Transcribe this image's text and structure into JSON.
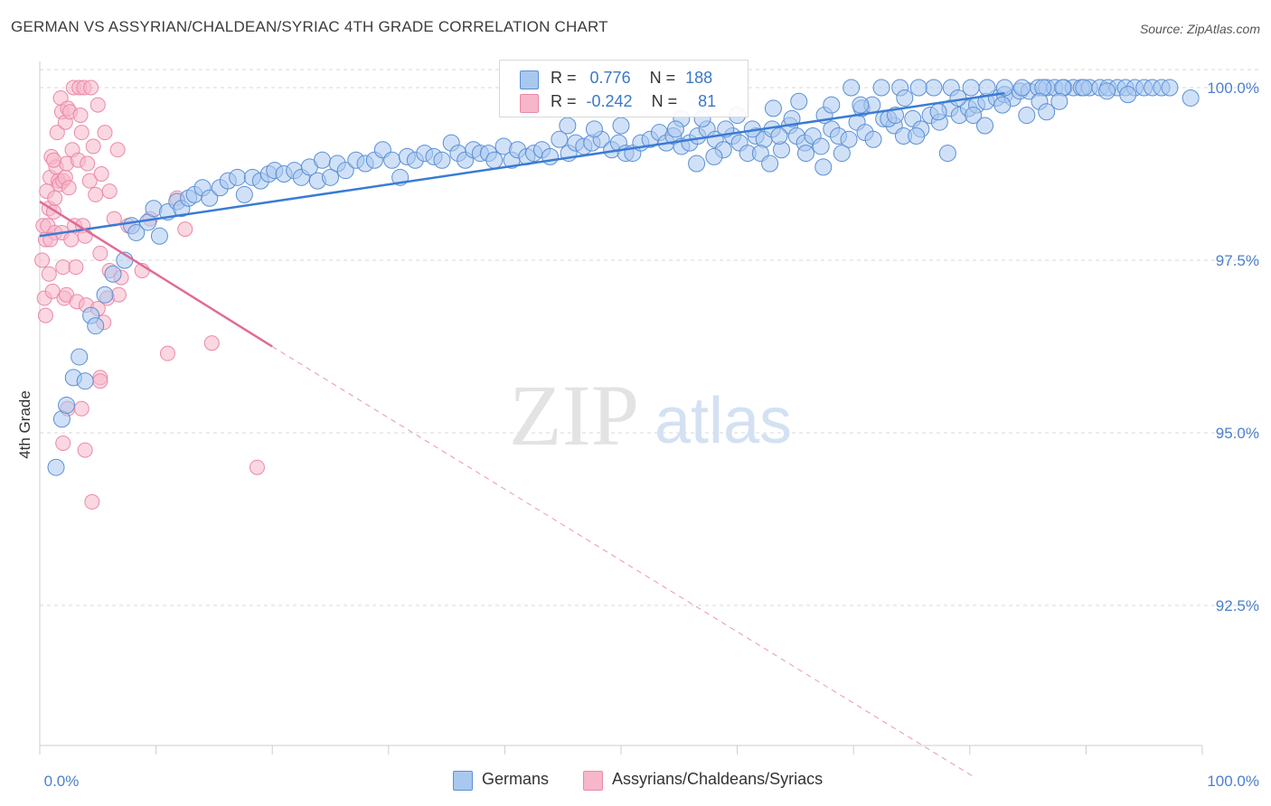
{
  "title": "GERMAN VS ASSYRIAN/CHALDEAN/SYRIAC 4TH GRADE CORRELATION CHART",
  "source": "Source: ZipAtlas.com",
  "watermark": {
    "zip": "ZIP",
    "atlas": "atlas"
  },
  "legend": {
    "r_label": "R =",
    "n_label": "N =",
    "germans": {
      "r": "0.776",
      "n": "188"
    },
    "assyrians": {
      "r": "-0.242",
      "n": "81"
    }
  },
  "colors": {
    "blue_fill": "#a9c8f0",
    "blue_stroke": "#5b8fd6",
    "blue_line": "#3a7bd5",
    "pink_fill": "#f7b6c9",
    "pink_stroke": "#e98aa8",
    "pink_line": "#e06a96",
    "tick_label": "#4a7fd0",
    "grid": "#d9d9d9"
  },
  "chart_data": {
    "type": "scatter",
    "title": "GERMAN VS ASSYRIAN/CHALDEAN/SYRIAC 4TH GRADE CORRELATION CHART",
    "ylabel": "4th Grade",
    "xlabel": "",
    "xlim": [
      0,
      100
    ],
    "ylim": [
      90.0,
      100.4
    ],
    "x_tick_labels": [
      "0.0%",
      "100.0%"
    ],
    "y_ticks": [
      92.5,
      95.0,
      97.5,
      100.0
    ],
    "y_tick_labels": [
      "92.5%",
      "95.0%",
      "97.5%",
      "100.0%"
    ],
    "grid": true,
    "legend_position": "bottom",
    "series": [
      {
        "name": "Germans",
        "r": 0.776,
        "n": 188,
        "trend": {
          "x0": 0,
          "y0": 97.85,
          "x1": 83,
          "y1": 99.92
        },
        "points": [
          [
            1.4,
            94.5
          ],
          [
            1.9,
            95.2
          ],
          [
            2.3,
            95.4
          ],
          [
            2.9,
            95.8
          ],
          [
            3.4,
            96.1
          ],
          [
            3.9,
            95.75
          ],
          [
            4.4,
            96.7
          ],
          [
            4.8,
            96.55
          ],
          [
            5.6,
            97.0
          ],
          [
            6.3,
            97.3
          ],
          [
            7.3,
            97.5
          ],
          [
            7.9,
            98.0
          ],
          [
            8.3,
            97.9
          ],
          [
            9.3,
            98.05
          ],
          [
            9.8,
            98.25
          ],
          [
            10.3,
            97.85
          ],
          [
            11.0,
            98.2
          ],
          [
            11.8,
            98.35
          ],
          [
            12.2,
            98.25
          ],
          [
            12.8,
            98.4
          ],
          [
            13.3,
            98.45
          ],
          [
            14.0,
            98.55
          ],
          [
            14.6,
            98.4
          ],
          [
            15.5,
            98.55
          ],
          [
            16.2,
            98.65
          ],
          [
            17.0,
            98.7
          ],
          [
            17.6,
            98.45
          ],
          [
            18.3,
            98.7
          ],
          [
            19.0,
            98.65
          ],
          [
            19.7,
            98.75
          ],
          [
            20.2,
            98.8
          ],
          [
            21.0,
            98.75
          ],
          [
            21.9,
            98.8
          ],
          [
            22.5,
            98.7
          ],
          [
            23.2,
            98.85
          ],
          [
            23.9,
            98.65
          ],
          [
            24.3,
            98.95
          ],
          [
            25.0,
            98.7
          ],
          [
            25.6,
            98.9
          ],
          [
            26.3,
            98.8
          ],
          [
            27.2,
            98.95
          ],
          [
            28.0,
            98.9
          ],
          [
            28.8,
            98.95
          ],
          [
            29.5,
            99.1
          ],
          [
            30.3,
            98.95
          ],
          [
            31.0,
            98.7
          ],
          [
            31.6,
            99.0
          ],
          [
            32.3,
            98.95
          ],
          [
            33.1,
            99.05
          ],
          [
            33.9,
            99.0
          ],
          [
            34.6,
            98.95
          ],
          [
            35.4,
            99.2
          ],
          [
            36.0,
            99.05
          ],
          [
            36.6,
            98.95
          ],
          [
            37.3,
            99.1
          ],
          [
            37.9,
            99.05
          ],
          [
            38.6,
            99.05
          ],
          [
            39.1,
            98.95
          ],
          [
            39.9,
            99.15
          ],
          [
            40.6,
            98.95
          ],
          [
            41.1,
            99.1
          ],
          [
            41.9,
            99.0
          ],
          [
            42.5,
            99.05
          ],
          [
            43.2,
            99.1
          ],
          [
            43.9,
            99.0
          ],
          [
            44.7,
            99.25
          ],
          [
            45.5,
            99.05
          ],
          [
            46.1,
            99.2
          ],
          [
            46.8,
            99.15
          ],
          [
            47.5,
            99.2
          ],
          [
            48.3,
            99.25
          ],
          [
            49.2,
            99.1
          ],
          [
            49.8,
            99.2
          ],
          [
            50.4,
            99.05
          ],
          [
            51.0,
            99.05
          ],
          [
            51.7,
            99.2
          ],
          [
            52.5,
            99.25
          ],
          [
            53.3,
            99.35
          ],
          [
            53.9,
            99.2
          ],
          [
            54.5,
            99.3
          ],
          [
            55.2,
            99.15
          ],
          [
            55.9,
            99.2
          ],
          [
            56.6,
            99.3
          ],
          [
            57.4,
            99.4
          ],
          [
            58.1,
            99.25
          ],
          [
            58.8,
            99.1
          ],
          [
            59.6,
            99.3
          ],
          [
            60.2,
            99.2
          ],
          [
            60.9,
            99.05
          ],
          [
            61.6,
            99.3
          ],
          [
            62.3,
            99.25
          ],
          [
            63.0,
            99.4
          ],
          [
            63.8,
            99.1
          ],
          [
            64.5,
            99.45
          ],
          [
            65.1,
            99.3
          ],
          [
            65.8,
            99.2
          ],
          [
            66.5,
            99.3
          ],
          [
            67.2,
            99.15
          ],
          [
            68.1,
            99.4
          ],
          [
            68.7,
            99.3
          ],
          [
            69.6,
            99.25
          ],
          [
            70.3,
            99.5
          ],
          [
            71.0,
            99.35
          ],
          [
            71.7,
            99.25
          ],
          [
            72.6,
            99.55
          ],
          [
            73.5,
            99.45
          ],
          [
            74.3,
            99.3
          ],
          [
            75.1,
            99.55
          ],
          [
            75.8,
            99.4
          ],
          [
            76.6,
            99.6
          ],
          [
            77.4,
            99.5
          ],
          [
            78.3,
            99.7
          ],
          [
            79.1,
            99.6
          ],
          [
            79.9,
            99.7
          ],
          [
            80.6,
            99.75
          ],
          [
            81.4,
            99.8
          ],
          [
            82.3,
            99.85
          ],
          [
            83.0,
            99.9
          ],
          [
            83.7,
            99.85
          ],
          [
            84.3,
            99.95
          ],
          [
            85.1,
            99.95
          ],
          [
            85.9,
            100.0
          ],
          [
            86.6,
            100.0
          ],
          [
            87.3,
            100.0
          ],
          [
            88.1,
            100.0
          ],
          [
            88.9,
            100.0
          ],
          [
            89.6,
            100.0
          ],
          [
            90.3,
            100.0
          ],
          [
            91.2,
            100.0
          ],
          [
            91.9,
            100.0
          ],
          [
            92.7,
            100.0
          ],
          [
            93.4,
            100.0
          ],
          [
            94.2,
            100.0
          ],
          [
            95.0,
            100.0
          ],
          [
            95.7,
            100.0
          ],
          [
            96.5,
            100.0
          ],
          [
            97.2,
            100.0
          ],
          [
            80.1,
            100.0
          ],
          [
            81.5,
            100.0
          ],
          [
            83.0,
            100.0
          ],
          [
            84.5,
            100.0
          ],
          [
            86.3,
            100.0
          ],
          [
            88.0,
            100.0
          ],
          [
            89.8,
            100.0
          ],
          [
            76.9,
            100.0
          ],
          [
            78.4,
            100.0
          ],
          [
            75.6,
            100.0
          ],
          [
            74.0,
            100.0
          ],
          [
            72.4,
            100.0
          ],
          [
            69.8,
            100.0
          ],
          [
            70.7,
            99.7
          ],
          [
            73.0,
            99.55
          ],
          [
            67.5,
            99.6
          ],
          [
            69.0,
            99.05
          ],
          [
            67.4,
            98.85
          ],
          [
            62.0,
            99.05
          ],
          [
            63.6,
            99.3
          ],
          [
            62.8,
            98.9
          ],
          [
            60.0,
            99.6
          ],
          [
            57.0,
            99.55
          ],
          [
            58.0,
            99.0
          ],
          [
            55.2,
            99.55
          ],
          [
            50.0,
            99.45
          ],
          [
            47.7,
            99.4
          ],
          [
            45.4,
            99.45
          ],
          [
            56.5,
            98.9
          ],
          [
            54.7,
            99.4
          ],
          [
            59.0,
            99.4
          ],
          [
            64.7,
            99.55
          ],
          [
            65.9,
            99.05
          ],
          [
            68.1,
            99.75
          ],
          [
            71.6,
            99.75
          ],
          [
            73.6,
            99.6
          ],
          [
            75.4,
            99.3
          ],
          [
            77.3,
            99.65
          ],
          [
            78.1,
            99.05
          ],
          [
            80.3,
            99.6
          ],
          [
            81.3,
            99.45
          ],
          [
            82.8,
            99.75
          ],
          [
            84.9,
            99.6
          ],
          [
            86.0,
            99.8
          ],
          [
            87.7,
            99.8
          ],
          [
            91.8,
            99.95
          ],
          [
            93.6,
            99.9
          ],
          [
            86.6,
            99.65
          ],
          [
            79.0,
            99.85
          ],
          [
            74.4,
            99.85
          ],
          [
            70.6,
            99.75
          ],
          [
            63.1,
            99.7
          ],
          [
            61.3,
            99.4
          ],
          [
            99.0,
            99.85
          ],
          [
            65.3,
            99.8
          ]
        ]
      },
      {
        "name": "Assyrians/Chaldeans/Syriacs",
        "r": -0.242,
        "n": 81,
        "trend": {
          "x0": 0,
          "y0": 98.35,
          "x1": 20,
          "y1": 96.25
        },
        "trend_extension": {
          "x1": 80.5,
          "y1": 90.0
        },
        "points": [
          [
            0.2,
            97.5
          ],
          [
            0.3,
            98.0
          ],
          [
            0.4,
            96.95
          ],
          [
            0.5,
            96.7
          ],
          [
            0.5,
            97.8
          ],
          [
            0.6,
            98.5
          ],
          [
            0.7,
            98.0
          ],
          [
            0.8,
            97.3
          ],
          [
            0.8,
            98.25
          ],
          [
            0.9,
            98.7
          ],
          [
            1.0,
            99.0
          ],
          [
            1.1,
            97.05
          ],
          [
            1.2,
            98.2
          ],
          [
            1.3,
            98.4
          ],
          [
            1.3,
            97.9
          ],
          [
            1.4,
            98.85
          ],
          [
            1.5,
            99.35
          ],
          [
            1.6,
            98.65
          ],
          [
            1.7,
            98.6
          ],
          [
            1.8,
            99.85
          ],
          [
            1.9,
            99.65
          ],
          [
            1.9,
            97.9
          ],
          [
            2.0,
            97.4
          ],
          [
            2.0,
            98.65
          ],
          [
            2.1,
            96.95
          ],
          [
            2.2,
            99.5
          ],
          [
            2.2,
            98.7
          ],
          [
            2.3,
            98.9
          ],
          [
            2.3,
            97.0
          ],
          [
            2.4,
            99.7
          ],
          [
            2.5,
            98.55
          ],
          [
            2.6,
            99.65
          ],
          [
            2.7,
            97.8
          ],
          [
            2.8,
            99.1
          ],
          [
            2.9,
            100.0
          ],
          [
            3.0,
            98.0
          ],
          [
            3.1,
            97.4
          ],
          [
            3.2,
            96.9
          ],
          [
            3.3,
            98.95
          ],
          [
            3.4,
            100.0
          ],
          [
            3.5,
            99.6
          ],
          [
            3.6,
            99.35
          ],
          [
            3.7,
            98.0
          ],
          [
            3.8,
            100.0
          ],
          [
            3.9,
            97.85
          ],
          [
            4.0,
            96.85
          ],
          [
            4.1,
            98.9
          ],
          [
            4.3,
            98.65
          ],
          [
            4.4,
            100.0
          ],
          [
            4.6,
            99.15
          ],
          [
            4.8,
            98.45
          ],
          [
            5.0,
            99.75
          ],
          [
            5.2,
            97.6
          ],
          [
            5.3,
            98.75
          ],
          [
            5.5,
            96.6
          ],
          [
            5.6,
            99.35
          ],
          [
            5.8,
            96.95
          ],
          [
            6.0,
            97.35
          ],
          [
            6.4,
            98.1
          ],
          [
            6.7,
            99.1
          ],
          [
            7.0,
            97.25
          ],
          [
            2.0,
            94.85
          ],
          [
            2.4,
            95.35
          ],
          [
            4.5,
            94.0
          ],
          [
            3.9,
            94.75
          ],
          [
            5.2,
            95.8
          ],
          [
            5.2,
            95.75
          ],
          [
            11.0,
            96.15
          ],
          [
            11.8,
            98.4
          ],
          [
            12.5,
            97.95
          ],
          [
            14.8,
            96.3
          ],
          [
            18.7,
            94.5
          ],
          [
            9.5,
            98.1
          ],
          [
            8.8,
            97.35
          ],
          [
            7.6,
            98.0
          ],
          [
            6.8,
            97.0
          ],
          [
            6.0,
            98.5
          ],
          [
            5.0,
            96.8
          ],
          [
            1.2,
            98.95
          ],
          [
            0.9,
            97.8
          ],
          [
            3.6,
            95.35
          ]
        ]
      }
    ]
  }
}
